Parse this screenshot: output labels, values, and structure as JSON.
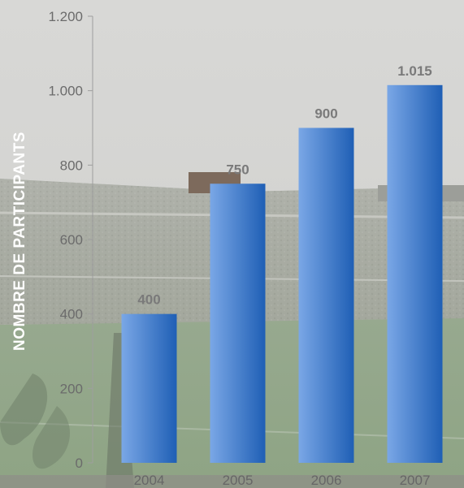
{
  "chart_data": {
    "type": "bar",
    "ylabel": "NOMBRE DE PARTICIPANTS",
    "categories": [
      "2004",
      "2005",
      "2006",
      "2007"
    ],
    "values": [
      400,
      750,
      900,
      1015
    ],
    "value_labels": [
      "400",
      "750",
      "900",
      "1.015"
    ],
    "ylim": [
      0,
      1200
    ],
    "yticks": [
      0,
      200,
      400,
      600,
      800,
      1000,
      1200
    ],
    "ytick_labels": [
      "0",
      "200",
      "400",
      "600",
      "800",
      "1.000",
      "1.200"
    ],
    "grid": false,
    "colors": {
      "bar_light": "#7aa7e6",
      "bar_dark": "#1f5fb5"
    },
    "background": "photo-of-football-stadium"
  }
}
